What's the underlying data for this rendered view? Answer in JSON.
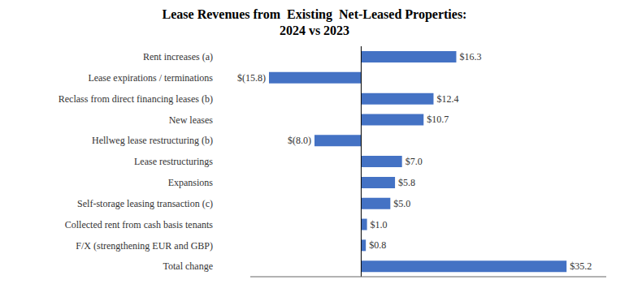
{
  "chart_data": {
    "type": "bar",
    "orientation": "horizontal",
    "title": "Lease Revenues from  Existing  Net-Leased Properties:\n2024 vs 2023",
    "categories": [
      "Rent increases (a)",
      "Lease expirations / terminations",
      "Reclass from direct financing leases (b)",
      "New leases",
      "Hellweg lease restructuring (b)",
      "Lease restructurings",
      "Expansions",
      "Self-storage leasing transaction (c)",
      "Collected rent from cash basis tenants",
      "F/X (strengthening EUR and GBP)",
      "Total change"
    ],
    "values": [
      16.3,
      -15.8,
      12.4,
      10.7,
      -8.0,
      7.0,
      5.8,
      5.0,
      1.0,
      0.8,
      35.2
    ],
    "value_labels": [
      "$16.3",
      "$(15.8)",
      "$12.4",
      "$10.7",
      "$(8.0)",
      "$7.0",
      "$5.8",
      "$5.0",
      "$1.0",
      "$0.8",
      "$35.2"
    ],
    "color": "#4472C4",
    "xlim": [
      -19,
      42
    ],
    "xticks": [],
    "tick_labels": "y",
    "data_labels": true,
    "grid": false
  }
}
